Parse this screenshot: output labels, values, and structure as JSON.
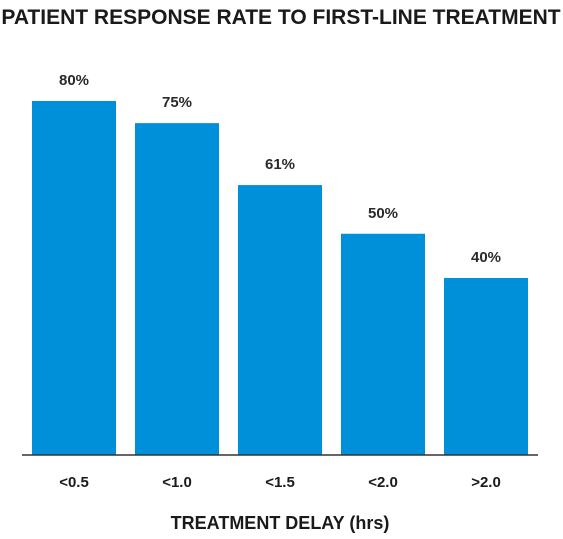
{
  "chart_data": {
    "type": "bar",
    "title": "PATIENT RESPONSE RATE TO FIRST-LINE TREATMENT",
    "xlabel": "TREATMENT DELAY (hrs)",
    "ylabel": "",
    "categories": [
      "<0.5",
      "<1.0",
      "<1.5",
      "<2.0",
      ">2.0"
    ],
    "values": [
      80,
      75,
      61,
      50,
      40
    ],
    "data_labels": [
      "80%",
      "75%",
      "61%",
      "50%",
      "40%"
    ],
    "ylim": [
      0,
      80
    ],
    "grid": false,
    "colors": {
      "bar": "#0090da",
      "axis": "#333333",
      "text": "#1a1a1a"
    }
  }
}
